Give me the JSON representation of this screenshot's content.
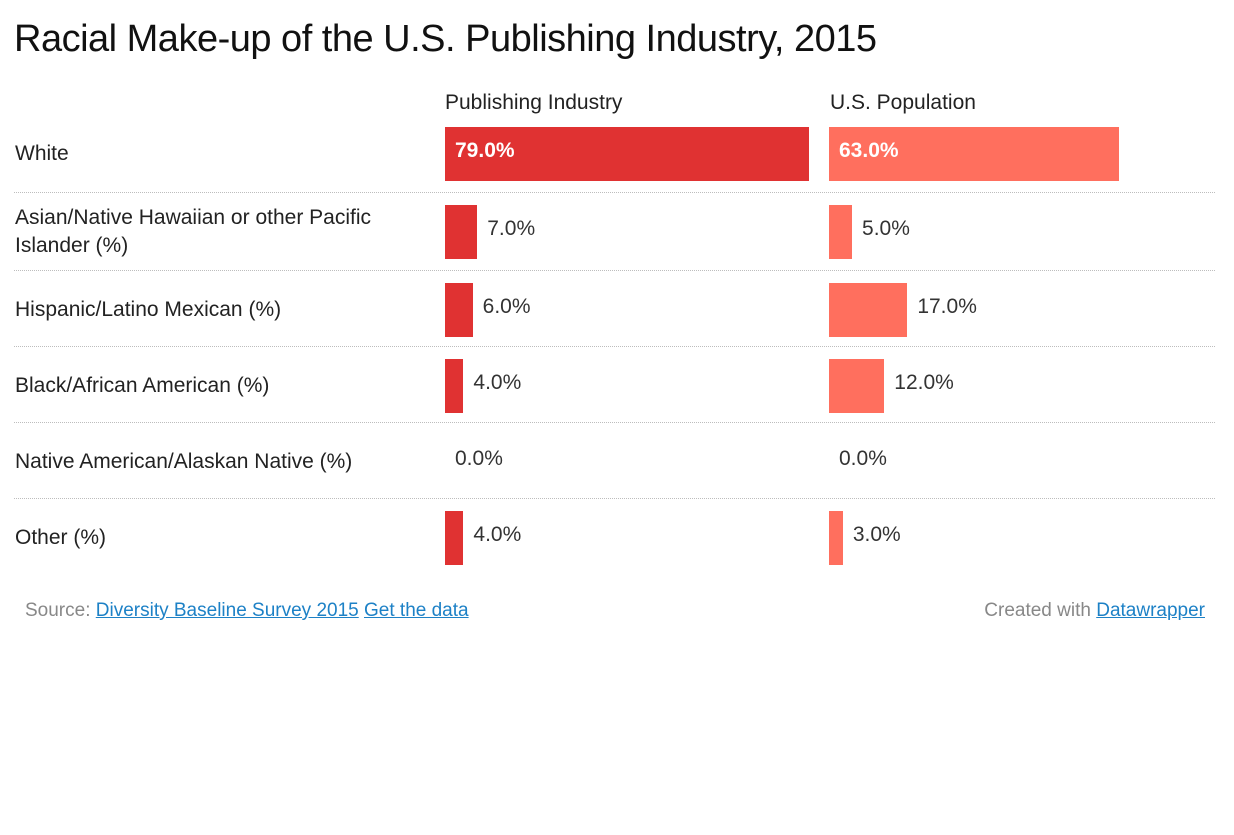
{
  "colors": {
    "publishing_bar": "#e03232",
    "population_bar": "#ff6f5e",
    "link": "#1d81c6"
  },
  "footer": {
    "source_label": "Source:",
    "source_link": "Diversity Baseline Survey 2015",
    "data_link": "Get the data",
    "created_label": "Created with",
    "created_link": "Datawrapper"
  },
  "chart_data": {
    "type": "bar",
    "orientation": "horizontal",
    "title": "Racial Make-up of the U.S. Publishing Industry, 2015",
    "value_format": "0.0%",
    "xlim": [
      0,
      79
    ],
    "categories": [
      "White",
      "Asian/Native Hawaiian or other Pacific Islander (%)",
      "Hispanic/Latino Mexican (%)",
      "Black/African American (%)",
      "Native American/Alaskan Native (%)",
      "Other (%)"
    ],
    "series": [
      {
        "name": "Publishing Industry",
        "values": [
          79,
          7,
          6,
          4,
          0,
          4
        ]
      },
      {
        "name": "U.S. Population",
        "values": [
          63,
          5,
          17,
          12,
          0,
          3
        ]
      }
    ]
  }
}
